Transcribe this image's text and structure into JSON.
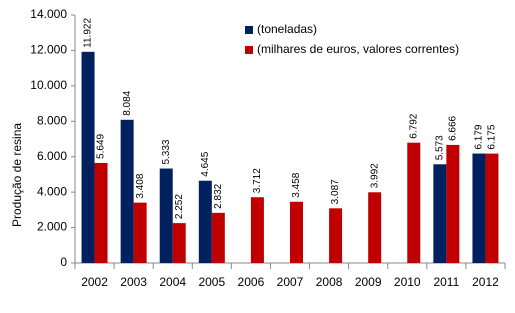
{
  "chart_data": {
    "type": "bar",
    "y_label": "Produção de resina",
    "categories": [
      "2002",
      "2003",
      "2004",
      "2005",
      "2006",
      "2007",
      "2008",
      "2009",
      "2010",
      "2011",
      "2012"
    ],
    "series": [
      {
        "name": "(toneladas)",
        "color": "#002060",
        "values": [
          11922,
          8084,
          5333,
          4645,
          null,
          null,
          null,
          null,
          null,
          5573,
          6179
        ],
        "value_labels": [
          "11.922",
          "8.084",
          "5.333",
          "4.645",
          null,
          null,
          null,
          null,
          null,
          "5.573",
          "6.179"
        ]
      },
      {
        "name": "(milhares de euros, valores correntes)",
        "color": "#c00000",
        "values": [
          5649,
          3408,
          2252,
          2832,
          3712,
          3458,
          3087,
          3992,
          6792,
          6666,
          6175
        ],
        "value_labels": [
          "5.649",
          "3.408",
          "2.252",
          "2.832",
          "3.712",
          "3.458",
          "3.087",
          "3.992",
          "6.792",
          "6.666",
          "6.175"
        ]
      }
    ],
    "ylim": [
      0,
      14000
    ],
    "yticks": [
      0,
      {
        "value": 2000,
        "label": "2.000"
      },
      {
        "value": 4000,
        "label": "4.000"
      },
      {
        "value": 6000,
        "label": "6.000"
      },
      {
        "value": 8000,
        "label": "8.000"
      },
      {
        "value": 10000,
        "label": "10.000"
      },
      {
        "value": 12000,
        "label": "12.000"
      },
      {
        "value": 14000,
        "label": "14.000"
      }
    ],
    "legend": "top-center"
  }
}
